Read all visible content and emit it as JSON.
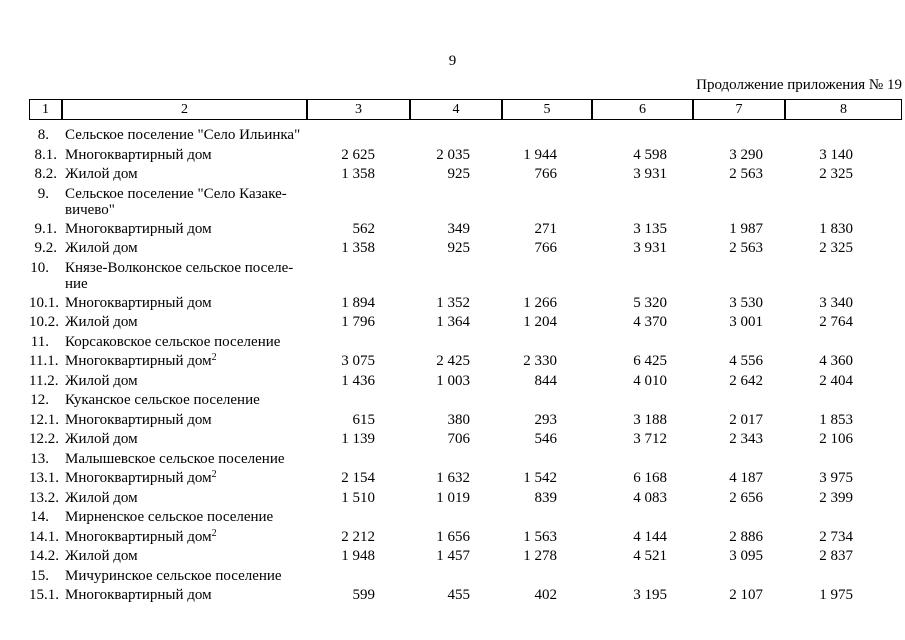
{
  "page": {
    "number": "9",
    "continuation": "Продолжение приложения № 19"
  },
  "table": {
    "column_headers": [
      "1",
      "2",
      "3",
      "4",
      "5",
      "6",
      "7",
      "8"
    ],
    "rows": [
      {
        "num": "8.",
        "name": "Сельское поселение \"Село Ильинка\""
      },
      {
        "num": "8.1.",
        "name": "Многоквартирный дом",
        "values": [
          "2 625",
          "2 035",
          "1 944",
          "4 598",
          "3 290",
          "3 140"
        ]
      },
      {
        "num": "8.2.",
        "name": "Жилой дом",
        "values": [
          "1 358",
          "925",
          "766",
          "3 931",
          "2 563",
          "2 325"
        ]
      },
      {
        "num": "9.",
        "name": "Сельское поселение \"Село Казаке-",
        "name2": "вичево\""
      },
      {
        "num": "9.1.",
        "name": "Многоквартирный дом",
        "values": [
          "562",
          "349",
          "271",
          "3 135",
          "1 987",
          "1 830"
        ]
      },
      {
        "num": "9.2.",
        "name": "Жилой дом",
        "values": [
          "1 358",
          "925",
          "766",
          "3 931",
          "2 563",
          "2 325"
        ]
      },
      {
        "num": "10.",
        "name": "Князе-Волконское сельское поселе-",
        "name2": "ние"
      },
      {
        "num": "10.1.",
        "name": "Многоквартирный дом",
        "values": [
          "1 894",
          "1 352",
          "1 266",
          "5 320",
          "3 530",
          "3 340"
        ]
      },
      {
        "num": "10.2.",
        "name": "Жилой дом",
        "values": [
          "1 796",
          "1 364",
          "1 204",
          "4 370",
          "3 001",
          "2 764"
        ]
      },
      {
        "num": "11.",
        "name": "Корсаковское сельское поселение"
      },
      {
        "num": "11.1.",
        "name": "Многоквартирный дом",
        "sup": "2",
        "values": [
          "3 075",
          "2 425",
          "2 330",
          "6 425",
          "4 556",
          "4 360"
        ]
      },
      {
        "num": "11.2.",
        "name": "Жилой дом",
        "values": [
          "1 436",
          "1 003",
          "844",
          "4 010",
          "2 642",
          "2 404"
        ]
      },
      {
        "num": "12.",
        "name": "Куканское сельское поселение"
      },
      {
        "num": "12.1.",
        "name": "Многоквартирный дом",
        "values": [
          "615",
          "380",
          "293",
          "3 188",
          "2 017",
          "1 853"
        ]
      },
      {
        "num": "12.2.",
        "name": "Жилой дом",
        "values": [
          "1 139",
          "706",
          "546",
          "3 712",
          "2 343",
          "2 106"
        ]
      },
      {
        "num": "13.",
        "name": "Малышевское сельское поселение"
      },
      {
        "num": "13.1.",
        "name": "Многоквартирный дом",
        "sup": "2",
        "values": [
          "2 154",
          "1 632",
          "1 542",
          "6 168",
          "4 187",
          "3 975"
        ]
      },
      {
        "num": "13.2.",
        "name": "Жилой дом",
        "values": [
          "1 510",
          "1 019",
          "839",
          "4 083",
          "2 656",
          "2 399"
        ]
      },
      {
        "num": "14.",
        "name": "Мирненское сельское поселение"
      },
      {
        "num": "14.1.",
        "name": "Многоквартирный дом",
        "sup": "2",
        "values": [
          "2 212",
          "1 656",
          "1 563",
          "4 144",
          "2 886",
          "2 734"
        ]
      },
      {
        "num": "14.2.",
        "name": "Жилой дом",
        "values": [
          "1 948",
          "1 457",
          "1 278",
          "4 521",
          "3 095",
          "2 837"
        ]
      },
      {
        "num": "15.",
        "name": "Мичуринское сельское поселение"
      },
      {
        "num": "15.1.",
        "name": "Многоквартирный дом",
        "values": [
          "599",
          "455",
          "402",
          "3 195",
          "2 107",
          "1 975"
        ]
      }
    ]
  }
}
